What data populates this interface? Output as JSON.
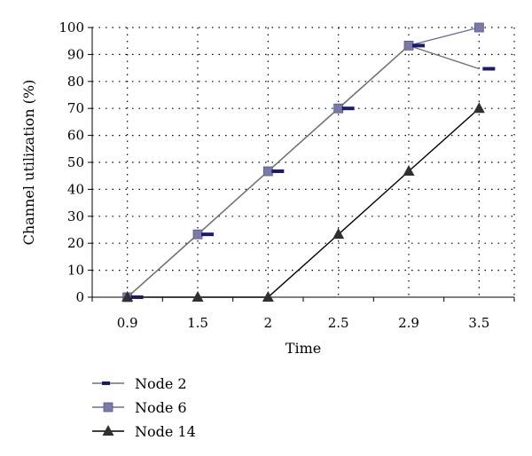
{
  "chart_data": {
    "type": "line",
    "title": "",
    "xlabel": "Time",
    "ylabel": "Channel utilization (%)",
    "categories": [
      "0.9",
      "1.5",
      "2",
      "2.5",
      "2.9",
      "3.5"
    ],
    "ylim": [
      0,
      100
    ],
    "yticks": [
      0,
      10,
      20,
      30,
      40,
      50,
      60,
      70,
      80,
      90,
      100
    ],
    "grid": true,
    "legend_position": "bottom-left",
    "series": [
      {
        "name": "Node 2",
        "values": [
          0,
          23.3,
          46.7,
          70,
          93.3,
          84.7
        ],
        "color": "#707070",
        "marker": "dash",
        "marker_color": "#1a1a6e"
      },
      {
        "name": "Node 6",
        "values": [
          0,
          23.3,
          46.7,
          70,
          93.3,
          100
        ],
        "color": "#6b6b9e",
        "marker": "square",
        "marker_color": "#7a7aa8"
      },
      {
        "name": "Node 14",
        "values": [
          0,
          0,
          0,
          23.3,
          46.7,
          70
        ],
        "color": "#000000",
        "marker": "triangle",
        "marker_color": "#303030"
      }
    ]
  }
}
